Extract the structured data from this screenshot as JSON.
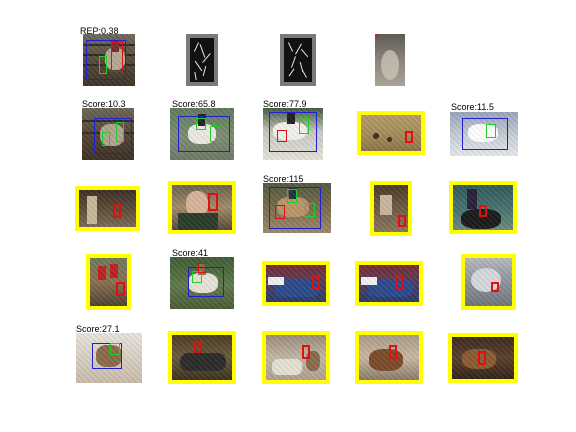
{
  "header": {
    "ap_label": "REP:0.38"
  },
  "scores": {
    "r2c1": "Score:10.3",
    "r2c2": "Score:65.8",
    "r2c3": "Score:77.9",
    "r2c5": "Score:11.5",
    "r3c3": "Score:115",
    "r4c2": "Score:41",
    "r5c1": "Score:27.1"
  },
  "colors": {
    "highlight": "#ffff00",
    "bbox_root": "#2020d0",
    "bbox_part": "#20d020",
    "bbox_false": "#e01010"
  }
}
